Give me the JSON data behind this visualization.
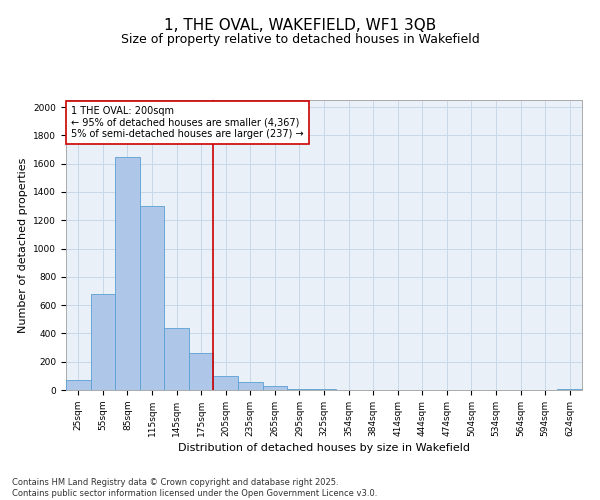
{
  "title": "1, THE OVAL, WAKEFIELD, WF1 3QB",
  "subtitle": "Size of property relative to detached houses in Wakefield",
  "xlabel": "Distribution of detached houses by size in Wakefield",
  "ylabel": "Number of detached properties",
  "categories": [
    "25sqm",
    "55sqm",
    "85sqm",
    "115sqm",
    "145sqm",
    "175sqm",
    "205sqm",
    "235sqm",
    "265sqm",
    "295sqm",
    "325sqm",
    "354sqm",
    "384sqm",
    "414sqm",
    "444sqm",
    "474sqm",
    "504sqm",
    "534sqm",
    "564sqm",
    "594sqm",
    "624sqm"
  ],
  "values": [
    70,
    680,
    1650,
    1300,
    440,
    260,
    100,
    55,
    30,
    10,
    5,
    2,
    1,
    0,
    0,
    0,
    0,
    0,
    0,
    0,
    5
  ],
  "bar_color": "#aec6e8",
  "bar_edgecolor": "#5a9fd4",
  "vline_x": 6,
  "vline_color": "#cc0000",
  "annotation_text": "1 THE OVAL: 200sqm\n← 95% of detached houses are smaller (4,367)\n5% of semi-detached houses are larger (237) →",
  "annotation_box_color": "#cc0000",
  "ylim": [
    0,
    2050
  ],
  "yticks": [
    0,
    200,
    400,
    600,
    800,
    1000,
    1200,
    1400,
    1600,
    1800,
    2000
  ],
  "grid_color": "#c8d8e8",
  "background_color": "#eaf0f8",
  "footer_text": "Contains HM Land Registry data © Crown copyright and database right 2025.\nContains public sector information licensed under the Open Government Licence v3.0.",
  "title_fontsize": 11,
  "subtitle_fontsize": 9,
  "label_fontsize": 8,
  "tick_fontsize": 6.5,
  "annotation_fontsize": 7,
  "footer_fontsize": 6
}
